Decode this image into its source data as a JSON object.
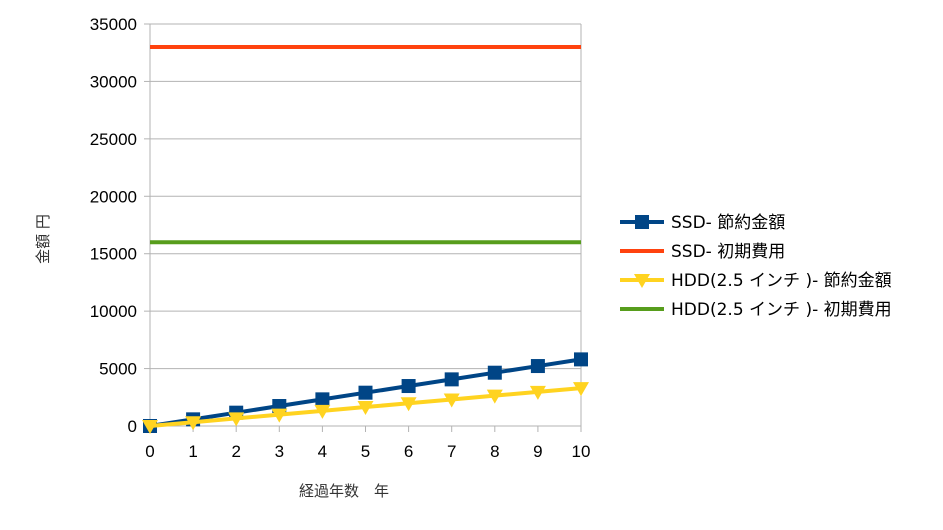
{
  "chart_data": {
    "type": "line",
    "title": "",
    "xlabel": "経過年数　年",
    "ylabel": "金額 円",
    "x": [
      0,
      1,
      2,
      3,
      4,
      5,
      6,
      7,
      8,
      9,
      10
    ],
    "xlim": [
      0,
      10
    ],
    "ylim": [
      0,
      35000
    ],
    "yticks": [
      0,
      5000,
      10000,
      15000,
      20000,
      25000,
      30000,
      35000
    ],
    "grid": "horizontal",
    "legend_position": "right",
    "series": [
      {
        "name": "SSD- 節約金額",
        "color": "#004586",
        "marker": "square",
        "values": [
          0,
          580,
          1160,
          1740,
          2320,
          2900,
          3480,
          4060,
          4640,
          5220,
          5800
        ]
      },
      {
        "name": "SSD- 初期費用",
        "color": "#ff420e",
        "marker": "none",
        "values": [
          33000,
          33000,
          33000,
          33000,
          33000,
          33000,
          33000,
          33000,
          33000,
          33000,
          33000
        ]
      },
      {
        "name": "HDD(2.5 インチ )- 節約金額",
        "color": "#ffd320",
        "marker": "triangle-down",
        "values": [
          0,
          330,
          660,
          990,
          1320,
          1650,
          1980,
          2310,
          2640,
          2970,
          3300
        ]
      },
      {
        "name": "HDD(2.5 インチ )- 初期費用",
        "color": "#579d1c",
        "marker": "none",
        "values": [
          16000,
          16000,
          16000,
          16000,
          16000,
          16000,
          16000,
          16000,
          16000,
          16000,
          16000
        ]
      }
    ]
  }
}
